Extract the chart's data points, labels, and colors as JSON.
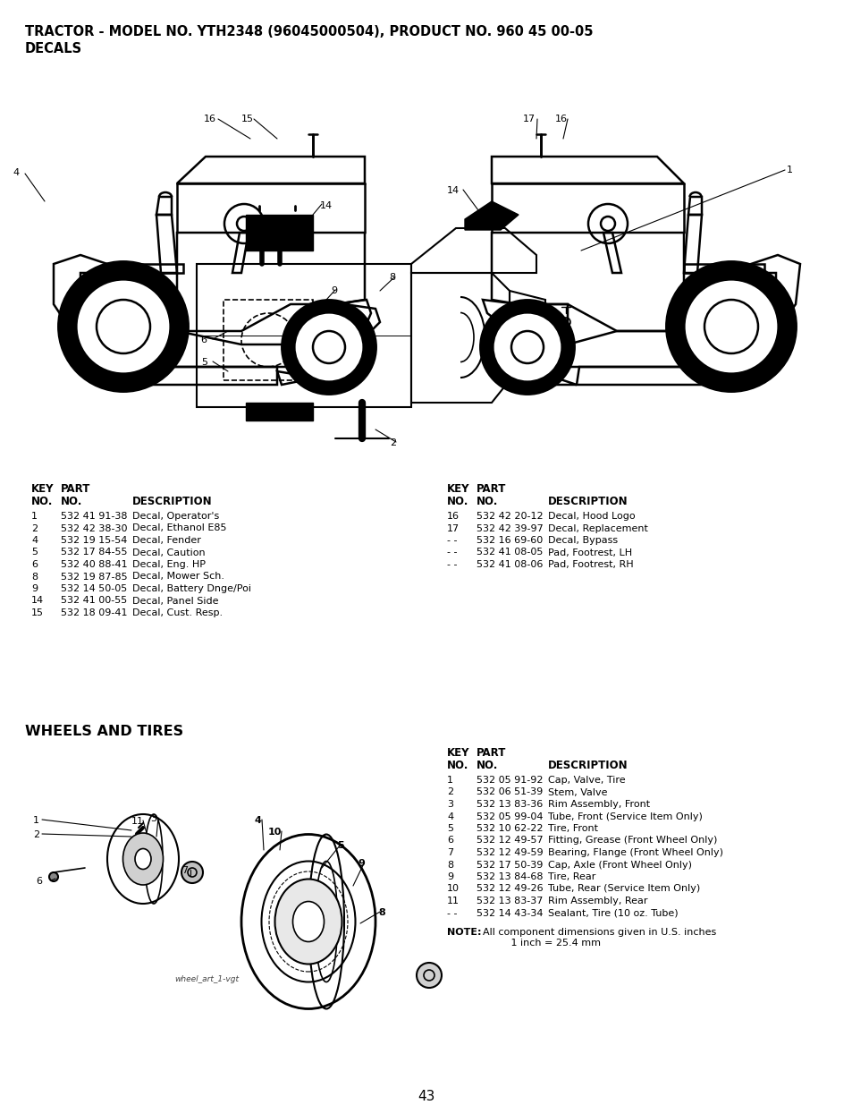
{
  "title_line1": "TRACTOR - MODEL NO. YTH2348 (96045000504), PRODUCT NO. 960 45 00-05",
  "title_line2": "DECALS",
  "bg_color": "#ffffff",
  "page_number": "43",
  "decals_left_rows": [
    [
      "1",
      "532 41 91-38",
      "Decal, Operator's"
    ],
    [
      "2",
      "532 42 38-30",
      "Decal, Ethanol E85"
    ],
    [
      "4",
      "532 19 15-54",
      "Decal, Fender"
    ],
    [
      "5",
      "532 17 84-55",
      "Decal, Caution"
    ],
    [
      "6",
      "532 40 88-41",
      "Decal, Eng. HP"
    ],
    [
      "8",
      "532 19 87-85",
      "Decal, Mower Sch."
    ],
    [
      "9",
      "532 14 50-05",
      "Decal, Battery Dnge/Poi"
    ],
    [
      "14",
      "532 41 00-55",
      "Decal, Panel Side"
    ],
    [
      "15",
      "532 18 09-41",
      "Decal, Cust. Resp."
    ]
  ],
  "decals_right_rows": [
    [
      "16",
      "532 42 20-12",
      "Decal, Hood Logo"
    ],
    [
      "17",
      "532 42 39-97",
      "Decal, Replacement"
    ],
    [
      "- -",
      "532 16 69-60",
      "Decal, Bypass"
    ],
    [
      "- -",
      "532 41 08-05",
      "Pad, Footrest, LH"
    ],
    [
      "- -",
      "532 41 08-06",
      "Pad, Footrest, RH"
    ]
  ],
  "wheels_title": "WHEELS AND TIRES",
  "wheels_rows": [
    [
      "1",
      "532 05 91-92",
      "Cap, Valve, Tire"
    ],
    [
      "2",
      "532 06 51-39",
      "Stem, Valve"
    ],
    [
      "3",
      "532 13 83-36",
      "Rim Assembly, Front"
    ],
    [
      "4",
      "532 05 99-04",
      "Tube, Front (Service Item Only)"
    ],
    [
      "5",
      "532 10 62-22",
      "Tire, Front"
    ],
    [
      "6",
      "532 12 49-57",
      "Fitting, Grease (Front Wheel Only)"
    ],
    [
      "7",
      "532 12 49-59",
      "Bearing, Flange (Front Wheel Only)"
    ],
    [
      "8",
      "532 17 50-39",
      "Cap, Axle (Front Wheel Only)"
    ],
    [
      "9",
      "532 13 84-68",
      "Tire, Rear"
    ],
    [
      "10",
      "532 12 49-26",
      "Tube, Rear (Service Item Only)"
    ],
    [
      "11",
      "532 13 83-37",
      "Rim Assembly, Rear"
    ],
    [
      "- -",
      "532 14 43-34",
      "Sealant, Tire (10 oz. Tube)"
    ]
  ],
  "note_bold": "NOTE:",
  "note_rest": "  All component dimensions given in U.S. inches\n           1 inch = 25.4 mm"
}
